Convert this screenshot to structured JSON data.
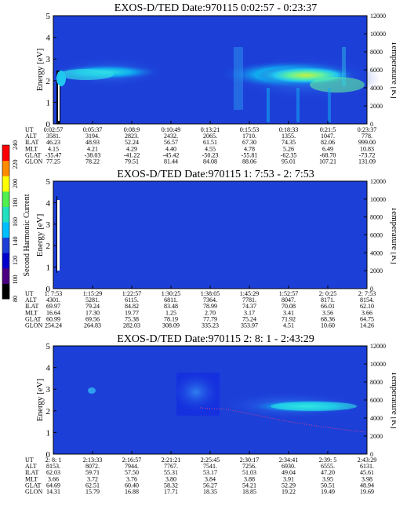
{
  "chart_data": [
    {
      "type": "heatmap",
      "title": "EXOS-D/TED   Date:970115  0:02:57 - 0:23:37",
      "ylabel": "Energy [eV]",
      "ylabel_right": "Temperature [K]",
      "ylim": [
        0,
        5
      ],
      "ylim_right": [
        0,
        12000
      ],
      "yticks": [
        "0",
        "1",
        "2",
        "3",
        "4",
        "5"
      ],
      "yticks_right": [
        "0",
        "2000",
        "4000",
        "6000",
        "8000",
        "10000",
        "12000"
      ],
      "orbit_rows": [
        {
          "label": "UT",
          "values": [
            "0:02:57",
            "0:05:37",
            "0:08:9",
            "0:10:49",
            "0:13:21",
            "0:15:53",
            "0:18:33",
            "0:21:5",
            "0:23:37"
          ]
        },
        {
          "label": "ALT",
          "values": [
            "3581.",
            "3194.",
            "2823.",
            "2432.",
            "2065.",
            "1710.",
            "1355.",
            "1047.",
            "778."
          ]
        },
        {
          "label": "ILAT",
          "values": [
            "46.23",
            "48.93",
            "52.24",
            "56.57",
            "61.51",
            "67.30",
            "74.35",
            "82.06",
            "999.00"
          ]
        },
        {
          "label": "MLT",
          "values": [
            "4.15",
            "4.21",
            "4.29",
            "4.40",
            "4.55",
            "4.78",
            "5.26",
            "6.49",
            "10.83"
          ]
        },
        {
          "label": "GLAT",
          "values": [
            "-35.47",
            "-38.03",
            "-41.22",
            "-45.42",
            "-50.23",
            "-55.81",
            "-62.35",
            "-68.70",
            "-73.72"
          ]
        },
        {
          "label": "GLON",
          "values": [
            "77.25",
            "78.22",
            "79.51",
            "81.44",
            "84.08",
            "88.06",
            "95.01",
            "107.21",
            "131.09"
          ]
        }
      ]
    },
    {
      "type": "heatmap",
      "title": "EXOS-D/TED   Date:970115  1: 7:53 - 2: 7:53",
      "ylabel": "Energy [eV]",
      "ylabel_right": "Temperature [K]",
      "ylim": [
        0,
        5
      ],
      "ylim_right": [
        0,
        12000
      ],
      "yticks": [
        "0",
        "1",
        "2",
        "3",
        "4",
        "5"
      ],
      "yticks_right": [
        "0",
        "2000",
        "4000",
        "6000",
        "8000",
        "10000",
        "12000"
      ],
      "orbit_rows": [
        {
          "label": "UT",
          "values": [
            "1: 7:53",
            "1:15:29",
            "1:22:57",
            "1:30:25",
            "1:38:05",
            "1:45:29",
            "1:52:57",
            "2: 0:25",
            "2: 7:53"
          ]
        },
        {
          "label": "ALT",
          "values": [
            "4301.",
            "5281.",
            "6115.",
            "6811.",
            "7364.",
            "7781.",
            "8047.",
            "8171.",
            "8154."
          ]
        },
        {
          "label": "ILAT",
          "values": [
            "69.97",
            "79.24",
            "84.82",
            "83.48",
            "78.99",
            "74.37",
            "70.08",
            "66.01",
            "62.10"
          ]
        },
        {
          "label": "MLT",
          "values": [
            "16.64",
            "17.30",
            "19.77",
            "1.25",
            "2.70",
            "3.17",
            "3.41",
            "3.56",
            "3.66"
          ]
        },
        {
          "label": "GLAT",
          "values": [
            "60.99",
            "69.56",
            "75.38",
            "78.19",
            "77.79",
            "75.24",
            "71.92",
            "68.36",
            "64.75"
          ]
        },
        {
          "label": "GLON",
          "values": [
            "254.24",
            "264.83",
            "282.03",
            "308.09",
            "335.23",
            "353.97",
            "4.51",
            "10.60",
            "14.26"
          ]
        }
      ]
    },
    {
      "type": "heatmap",
      "title": "EXOS-D/TED   Date:970115  2: 8: 1 - 2:43:29",
      "ylabel": "Energy [eV]",
      "ylabel_right": "Temperature [K]",
      "ylim": [
        0,
        5
      ],
      "ylim_right": [
        0,
        12000
      ],
      "yticks": [
        "0",
        "1",
        "2",
        "3",
        "4",
        "5"
      ],
      "yticks_right": [
        "0",
        "2000",
        "4000",
        "6000",
        "8000",
        "10000",
        "12000"
      ],
      "orbit_rows": [
        {
          "label": "UT",
          "values": [
            "2: 8: 1",
            "2:13:33",
            "2:16:57",
            "2:21:21",
            "2:25:45",
            "2:30:17",
            "2:34:41",
            "2:39: 5",
            "2:43:29"
          ]
        },
        {
          "label": "ALT",
          "values": [
            "8153.",
            "8072.",
            "7944.",
            "7767.",
            "7541.",
            "7256.",
            "6930.",
            "6555.",
            "6131."
          ]
        },
        {
          "label": "ILAT",
          "values": [
            "62.03",
            "59.71",
            "57.50",
            "55.31",
            "53.17",
            "51.03",
            "49.04",
            "47.20",
            "45.61"
          ]
        },
        {
          "label": "MLT",
          "values": [
            "3.66",
            "3.72",
            "3.76",
            "3.80",
            "3.84",
            "3.88",
            "3.91",
            "3.95",
            "3.98"
          ]
        },
        {
          "label": "GLAT",
          "values": [
            "64.69",
            "62.51",
            "60.40",
            "58.32",
            "56.27",
            "54.21",
            "52.29",
            "50.51",
            "48.94"
          ]
        },
        {
          "label": "GLON",
          "values": [
            "14.31",
            "15.79",
            "16.88",
            "17.71",
            "18.35",
            "18.85",
            "19.22",
            "19.49",
            "19.69"
          ]
        }
      ]
    }
  ],
  "colorbar": {
    "label": "Second Harmonic Current",
    "ticks": [
      "80",
      "100",
      "120",
      "140",
      "160",
      "180",
      "200",
      "220",
      "240"
    ],
    "colors": [
      "#000000",
      "#4b0082",
      "#0000cd",
      "#1c3fd8",
      "#00bfff",
      "#20e0c0",
      "#50f050",
      "#ffff00",
      "#ff8c00",
      "#ff0000"
    ]
  }
}
